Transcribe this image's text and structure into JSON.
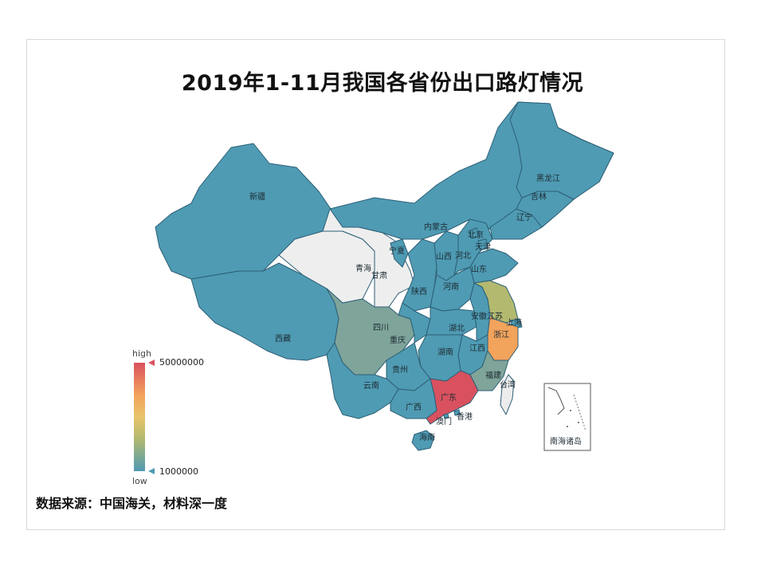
{
  "title": "2019年1-11月我国各省份出口路灯情况",
  "source": "数据来源：中国海关，材料深一度",
  "legend": {
    "high_label": "high",
    "low_label": "low",
    "max_value": "50000000",
    "min_value": "1000000",
    "colors": [
      "#d9515f",
      "#f2a35c",
      "#e8c46a",
      "#b3b96f",
      "#7fa49a",
      "#4f9bb3"
    ]
  },
  "inset_label": "南海诸岛",
  "regions": [
    {
      "name": "新疆",
      "level": "low"
    },
    {
      "name": "西藏",
      "level": "low"
    },
    {
      "name": "青海",
      "level": "no-data"
    },
    {
      "name": "甘肃",
      "level": "no-data"
    },
    {
      "name": "宁夏",
      "level": "low"
    },
    {
      "name": "内蒙古",
      "level": "low"
    },
    {
      "name": "黑龙江",
      "level": "low"
    },
    {
      "name": "吉林",
      "level": "low"
    },
    {
      "name": "辽宁",
      "level": "low"
    },
    {
      "name": "北京",
      "level": "low"
    },
    {
      "name": "天津",
      "level": "low"
    },
    {
      "name": "河北",
      "level": "low"
    },
    {
      "name": "山西",
      "level": "low"
    },
    {
      "name": "山东",
      "level": "low"
    },
    {
      "name": "陕西",
      "level": "low"
    },
    {
      "name": "河南",
      "level": "low"
    },
    {
      "name": "四川",
      "level": "low-mid"
    },
    {
      "name": "重庆",
      "level": "low"
    },
    {
      "name": "湖北",
      "level": "low"
    },
    {
      "name": "安徽",
      "level": "low"
    },
    {
      "name": "江苏",
      "level": "mid"
    },
    {
      "name": "上海",
      "level": "low"
    },
    {
      "name": "浙江",
      "level": "mid-high"
    },
    {
      "name": "江西",
      "level": "low"
    },
    {
      "name": "湖南",
      "level": "low"
    },
    {
      "name": "贵州",
      "level": "low"
    },
    {
      "name": "云南",
      "level": "low"
    },
    {
      "name": "福建",
      "level": "low-mid"
    },
    {
      "name": "台湾",
      "level": "no-data"
    },
    {
      "name": "广东",
      "level": "high"
    },
    {
      "name": "广西",
      "level": "low"
    },
    {
      "name": "海南",
      "level": "low"
    },
    {
      "name": "香港",
      "level": "low"
    },
    {
      "name": "澳门",
      "level": "low"
    }
  ]
}
